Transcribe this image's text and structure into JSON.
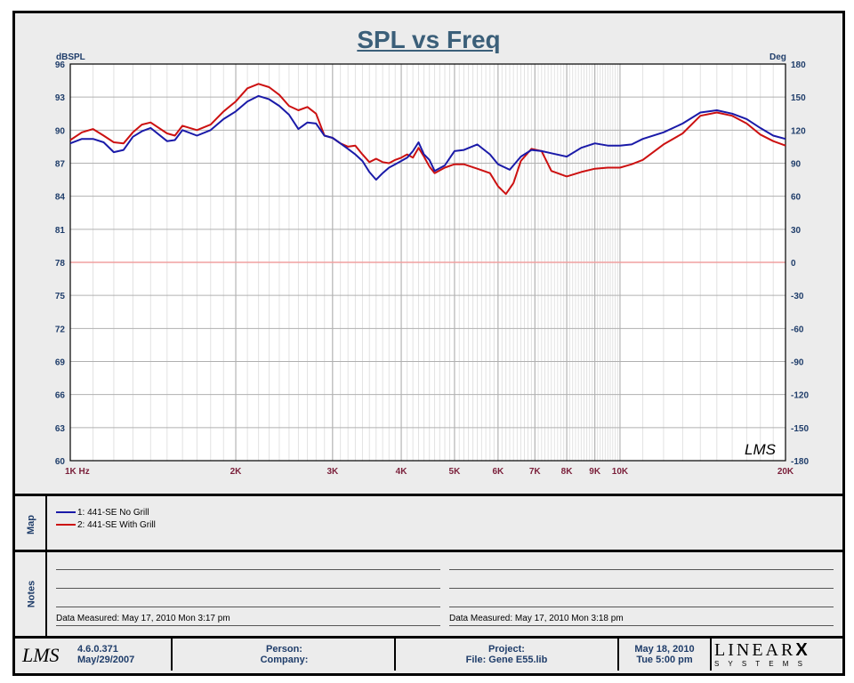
{
  "chart_data": {
    "type": "line",
    "title": "SPL vs Freq",
    "ylabel_left": "dBSPL",
    "ylabel_right": "Deg",
    "x_scale": "log",
    "xlim": [
      1000,
      20000
    ],
    "ylim": [
      60,
      96
    ],
    "y2lim": [
      -180,
      180
    ],
    "x_ticks": [
      {
        "value": 1000,
        "label": "1K  Hz"
      },
      {
        "value": 2000,
        "label": "2K"
      },
      {
        "value": 3000,
        "label": "3K"
      },
      {
        "value": 4000,
        "label": "4K"
      },
      {
        "value": 5000,
        "label": "5K"
      },
      {
        "value": 6000,
        "label": "6K"
      },
      {
        "value": 7000,
        "label": "7K"
      },
      {
        "value": 8000,
        "label": "8K"
      },
      {
        "value": 9000,
        "label": "9K"
      },
      {
        "value": 10000,
        "label": "10K"
      },
      {
        "value": 20000,
        "label": "20K"
      }
    ],
    "y_ticks": [
      "96",
      "93",
      "90",
      "87",
      "84",
      "81",
      "78",
      "75",
      "72",
      "69",
      "66",
      "63",
      "60"
    ],
    "y2_ticks": [
      "180",
      "150",
      "120",
      "90",
      "60",
      "30",
      "0",
      "-30",
      "-60",
      "-90",
      "-120",
      "-150",
      "-180"
    ],
    "grid": true,
    "reference_line": {
      "y": 78,
      "color": "#f0a0a0"
    },
    "series": [
      {
        "name": "441-SE  No Grill",
        "color": "#1a1aa8",
        "x": [
          1000,
          1050,
          1100,
          1150,
          1200,
          1250,
          1300,
          1350,
          1400,
          1500,
          1550,
          1600,
          1700,
          1800,
          1900,
          2000,
          2100,
          2200,
          2300,
          2400,
          2500,
          2600,
          2700,
          2800,
          2900,
          3000,
          3100,
          3200,
          3300,
          3400,
          3500,
          3600,
          3700,
          3800,
          3900,
          4000,
          4100,
          4200,
          4300,
          4400,
          4500,
          4600,
          4800,
          5000,
          5200,
          5500,
          5800,
          6000,
          6300,
          6600,
          6900,
          7200,
          7500,
          8000,
          8500,
          9000,
          9500,
          10000,
          10500,
          11000,
          12000,
          13000,
          14000,
          15000,
          16000,
          17000,
          18000,
          19000,
          20000
        ],
        "y": [
          88.8,
          89.2,
          89.2,
          88.9,
          88.0,
          88.2,
          89.4,
          89.9,
          90.2,
          89.0,
          89.1,
          90.0,
          89.5,
          90.0,
          91.0,
          91.7,
          92.6,
          93.1,
          92.8,
          92.2,
          91.4,
          90.1,
          90.7,
          90.6,
          89.5,
          89.3,
          88.8,
          88.3,
          87.8,
          87.2,
          86.2,
          85.5,
          86.1,
          86.6,
          86.9,
          87.2,
          87.5,
          88.1,
          88.9,
          87.8,
          87.3,
          86.3,
          86.8,
          88.1,
          88.2,
          88.7,
          87.8,
          86.9,
          86.4,
          87.6,
          88.2,
          88.1,
          87.9,
          87.6,
          88.4,
          88.8,
          88.6,
          88.6,
          88.7,
          89.2,
          89.8,
          90.6,
          91.6,
          91.8,
          91.5,
          91.0,
          90.2,
          89.5,
          89.2
        ]
      },
      {
        "name": "441-SE  With Grill",
        "color": "#cc1111",
        "x": [
          1000,
          1050,
          1100,
          1150,
          1200,
          1250,
          1300,
          1350,
          1400,
          1500,
          1550,
          1600,
          1700,
          1800,
          1900,
          2000,
          2100,
          2200,
          2300,
          2400,
          2500,
          2600,
          2700,
          2800,
          2900,
          3000,
          3100,
          3200,
          3300,
          3400,
          3500,
          3600,
          3700,
          3800,
          3900,
          4000,
          4100,
          4200,
          4300,
          4400,
          4500,
          4600,
          4800,
          5000,
          5200,
          5500,
          5800,
          6000,
          6200,
          6400,
          6600,
          6900,
          7200,
          7500,
          8000,
          8500,
          9000,
          9500,
          10000,
          10500,
          11000,
          12000,
          13000,
          14000,
          15000,
          16000,
          17000,
          18000,
          19000,
          20000
        ],
        "y": [
          89.1,
          89.8,
          90.1,
          89.5,
          88.9,
          88.8,
          89.8,
          90.5,
          90.7,
          89.7,
          89.5,
          90.4,
          90.0,
          90.5,
          91.7,
          92.6,
          93.8,
          94.2,
          93.9,
          93.2,
          92.2,
          91.8,
          92.1,
          91.5,
          89.5,
          89.3,
          88.8,
          88.5,
          88.6,
          87.8,
          87.1,
          87.4,
          87.1,
          87.0,
          87.3,
          87.5,
          87.8,
          87.5,
          88.4,
          87.6,
          86.7,
          86.1,
          86.6,
          86.9,
          86.9,
          86.5,
          86.1,
          84.9,
          84.2,
          85.2,
          87.2,
          88.3,
          88.1,
          86.3,
          85.8,
          86.2,
          86.5,
          86.6,
          86.6,
          86.9,
          87.3,
          88.7,
          89.7,
          91.3,
          91.6,
          91.3,
          90.6,
          89.6,
          89.0,
          88.6
        ]
      }
    ]
  },
  "map": {
    "label": "Map",
    "legend": [
      "1: 441-SE  No Grill",
      "2: 441-SE  With Grill"
    ]
  },
  "notes": {
    "label": "Notes",
    "left_date": "Data Measured: May 17, 2010  Mon  3:17 pm",
    "right_date": "Data Measured: May 17, 2010  Mon  3:18 pm"
  },
  "footer": {
    "logo": "LMS",
    "version": "4.6.0.371",
    "version_date": "May/29/2007",
    "person_label": "Person:",
    "company_label": "Company:",
    "project_label": "Project:",
    "file_label": "File: Gene E55.lib",
    "date": "May 18, 2010",
    "day_time": "Tue  5:00 pm",
    "brand_top": "LINEAR",
    "brand_x": "X",
    "brand_bottom": "S Y S T E M S"
  },
  "watermark": "LMS",
  "colors": {
    "title": "#3b5f79",
    "axis_text": "#1f3d6a",
    "tick_x": "#7a1f3a"
  }
}
